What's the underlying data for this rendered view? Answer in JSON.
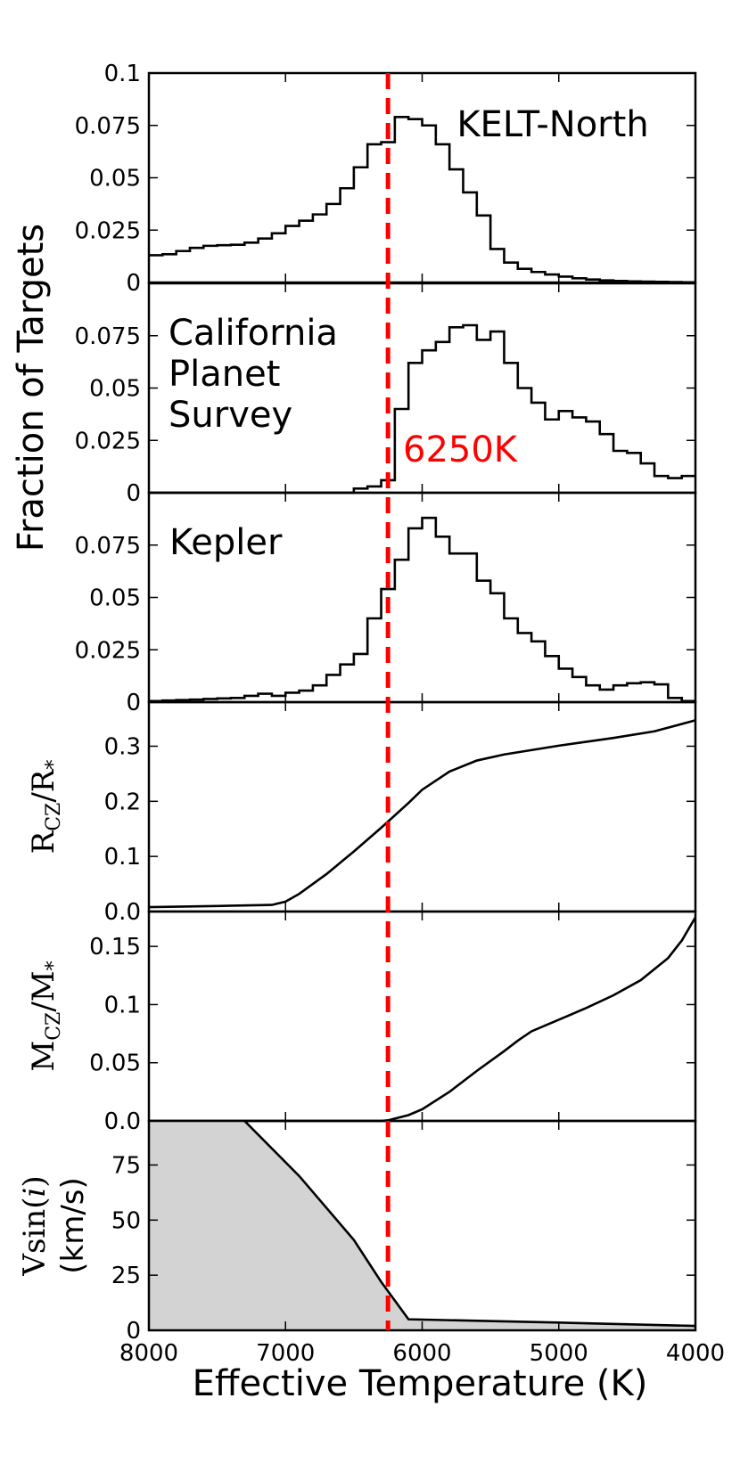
{
  "chart_data": {
    "type": "multi-panel",
    "xlabel": "Effective Temperature (K)",
    "xlim": [
      8000,
      4000
    ],
    "xticks": [
      "8000",
      "7000",
      "6000",
      "5000",
      "4000"
    ],
    "xtick_values": [
      8000,
      7000,
      6000,
      5000,
      4000
    ],
    "shared_ylabel": "Fraction of Targets",
    "threshold": {
      "x": 6250,
      "label": "6250K",
      "color": "#ff0000"
    },
    "bin_edges": [
      8000,
      7900,
      7800,
      7700,
      7600,
      7500,
      7400,
      7300,
      7200,
      7100,
      7000,
      6900,
      6800,
      6700,
      6600,
      6500,
      6400,
      6300,
      6200,
      6100,
      6000,
      5900,
      5800,
      5700,
      5600,
      5500,
      5400,
      5300,
      5200,
      5100,
      5000,
      4900,
      4800,
      4700,
      4600,
      4500,
      4400,
      4300,
      4200,
      4100,
      4000
    ],
    "panels": [
      {
        "type": "step",
        "name": "KELT-North",
        "annotation": "KELT-North",
        "ylim": [
          0,
          0.1
        ],
        "yticks": [
          0,
          0.025,
          0.05,
          0.075,
          0.1
        ],
        "ytick_labels": [
          "0",
          "0.025",
          "0.05",
          "0.075",
          "0.1"
        ],
        "values": [
          0.013,
          0.0135,
          0.015,
          0.0165,
          0.0175,
          0.0178,
          0.018,
          0.019,
          0.021,
          0.0235,
          0.027,
          0.0295,
          0.0325,
          0.0375,
          0.045,
          0.055,
          0.066,
          0.067,
          0.079,
          0.078,
          0.075,
          0.066,
          0.054,
          0.043,
          0.032,
          0.016,
          0.0095,
          0.0065,
          0.005,
          0.0038,
          0.0028,
          0.002,
          0.0014,
          0.001,
          0.0007,
          0.0005,
          0.0004,
          0.0003,
          0.0002,
          0.0001
        ]
      },
      {
        "type": "step",
        "name": "California Planet Survey",
        "annotation": [
          "California",
          "Planet",
          "Survey"
        ],
        "ylim": [
          0,
          0.1
        ],
        "yticks": [
          0,
          0.025,
          0.05,
          0.075
        ],
        "ytick_labels": [
          "0",
          "0.025",
          "0.05",
          "0.075"
        ],
        "values": [
          0,
          0,
          0,
          0,
          0,
          0,
          0,
          0,
          0,
          0,
          0,
          0,
          0,
          0,
          0,
          0.002,
          0.003,
          0.006,
          0.04,
          0.062,
          0.068,
          0.072,
          0.079,
          0.08,
          0.073,
          0.077,
          0.062,
          0.05,
          0.043,
          0.035,
          0.039,
          0.036,
          0.034,
          0.028,
          0.02,
          0.019,
          0.014,
          0.008,
          0.007,
          0.008
        ]
      },
      {
        "type": "step",
        "name": "Kepler",
        "annotation": "Kepler",
        "ylim": [
          0,
          0.1
        ],
        "yticks": [
          0,
          0.025,
          0.05,
          0.075
        ],
        "ytick_labels": [
          "0",
          "0.025",
          "0.05",
          "0.075"
        ],
        "values": [
          0.0005,
          0.0008,
          0.001,
          0.0012,
          0.0015,
          0.0018,
          0.002,
          0.003,
          0.004,
          0.003,
          0.0045,
          0.0055,
          0.008,
          0.013,
          0.018,
          0.023,
          0.04,
          0.054,
          0.068,
          0.083,
          0.088,
          0.079,
          0.071,
          0.071,
          0.058,
          0.052,
          0.04,
          0.033,
          0.029,
          0.022,
          0.016,
          0.012,
          0.008,
          0.006,
          0.008,
          0.009,
          0.0095,
          0.0085,
          0.002,
          0.0005
        ]
      },
      {
        "type": "line",
        "name": "convective-zone-radius",
        "ylabel": "R_CZ/R_*",
        "ylabel_main": "R",
        "ylabel_sub": "CZ",
        "ylabel_tail": "/R",
        "ylabel_star": "*",
        "ylim": [
          0,
          0.38
        ],
        "yticks": [
          0,
          0.1,
          0.2,
          0.3
        ],
        "ytick_labels": [
          "0.0",
          "0.1",
          "0.2",
          "0.3"
        ],
        "x": [
          8000,
          7500,
          7100,
          7000,
          6900,
          6700,
          6500,
          6300,
          6100,
          6000,
          5800,
          5600,
          5400,
          5000,
          4600,
          4300,
          4000
        ],
        "y": [
          0.008,
          0.01,
          0.012,
          0.018,
          0.032,
          0.068,
          0.109,
          0.152,
          0.197,
          0.221,
          0.254,
          0.274,
          0.285,
          0.301,
          0.315,
          0.327,
          0.347
        ]
      },
      {
        "type": "line",
        "name": "convective-zone-mass",
        "ylabel": "M_CZ/M_*",
        "ylabel_main": "M",
        "ylabel_sub": "CZ",
        "ylabel_tail": "/M",
        "ylabel_star": "*",
        "ylim": [
          0,
          0.18
        ],
        "yticks": [
          0,
          0.05,
          0.1,
          0.15
        ],
        "ytick_labels": [
          "0.0",
          "0.05",
          "0.1",
          "0.15"
        ],
        "x": [
          8000,
          6300,
          6250,
          6200,
          6100,
          6000,
          5800,
          5600,
          5400,
          5300,
          5200,
          5000,
          4800,
          4600,
          4400,
          4200,
          4100,
          4000
        ],
        "y": [
          0,
          0,
          0.0005,
          0.002,
          0.005,
          0.01,
          0.025,
          0.043,
          0.06,
          0.069,
          0.077,
          0.087,
          0.097,
          0.108,
          0.121,
          0.14,
          0.155,
          0.175
        ]
      },
      {
        "type": "area",
        "name": "vsini",
        "ylabel_line1_main": "V",
        "ylabel_line1_func": "sin(",
        "ylabel_line1_var": "i",
        "ylabel_line1_close": ")",
        "ylabel_line2": "(km/s)",
        "ylim": [
          0,
          95
        ],
        "yticks": [
          0,
          25,
          50,
          75
        ],
        "ytick_labels": [
          "0",
          "25",
          "50",
          "75"
        ],
        "x": [
          7300,
          6900,
          6500,
          6300,
          6100,
          5000,
          4000
        ],
        "y": [
          95,
          70,
          41,
          22,
          5,
          3.5,
          2
        ],
        "fill": "#d3d3d3"
      }
    ]
  }
}
